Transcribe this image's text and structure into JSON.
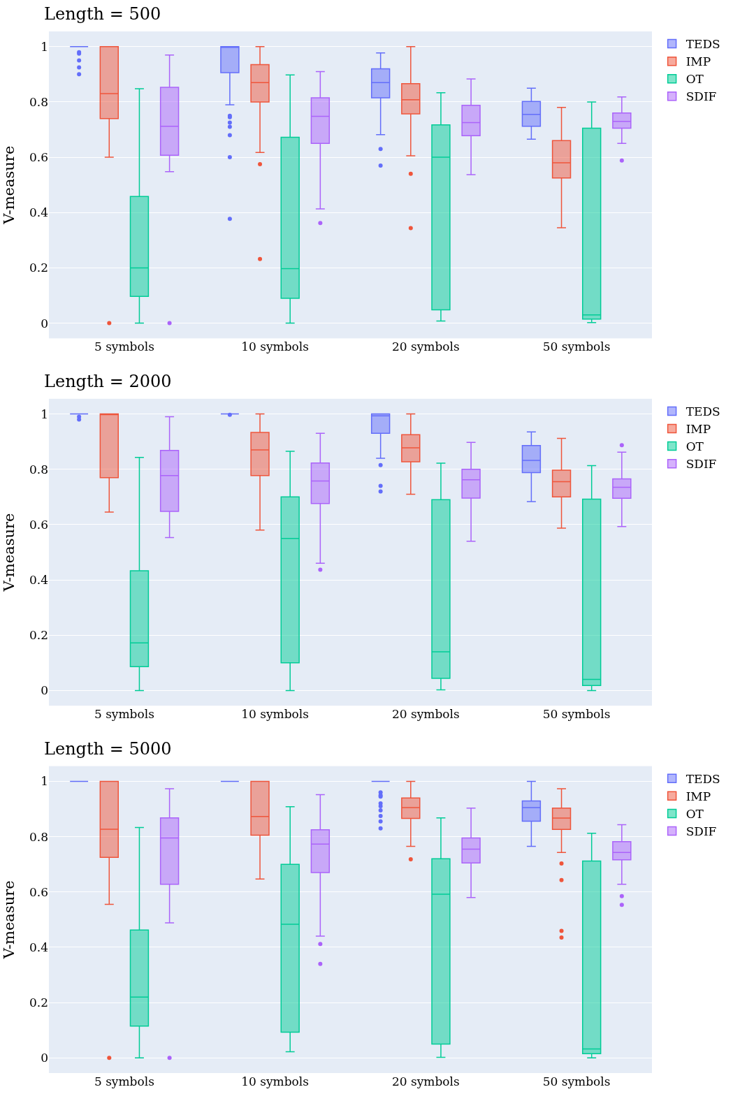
{
  "chart_data": [
    {
      "type": "box",
      "title": "Length = 500",
      "ylabel": "V-measure",
      "categories": [
        "5 symbols",
        "10 symbols",
        "20 symbols",
        "50 symbols"
      ],
      "ylim": [
        -0.055,
        1.055
      ],
      "yticks": [
        0,
        0.2,
        0.4,
        0.6,
        0.8,
        1
      ],
      "grid": "y",
      "legend": "top right",
      "series": [
        {
          "name": "TEDS",
          "color": "#636efa",
          "boxes": [
            {
              "low": 1,
              "q1": 1,
              "median": 1,
              "q3": 1,
              "high": 1,
              "outliers": [
                0.98,
                0.975,
                0.95,
                0.925,
                0.9
              ]
            },
            {
              "low": 0.79,
              "q1": 0.906,
              "median": 1,
              "q3": 1,
              "high": 1,
              "outliers": [
                0.75,
                0.745,
                0.725,
                0.71,
                0.68,
                0.6,
                0.377
              ]
            },
            {
              "low": 0.682,
              "q1": 0.815,
              "median": 0.87,
              "q3": 0.92,
              "high": 0.977,
              "outliers": [
                0.63,
                0.57
              ]
            },
            {
              "low": 0.665,
              "q1": 0.712,
              "median": 0.755,
              "q3": 0.802,
              "high": 0.85
            }
          ]
        },
        {
          "name": "IMP",
          "color": "#ef553b",
          "boxes": [
            {
              "low": 0.6,
              "q1": 0.74,
              "median": 0.83,
              "q3": 1,
              "high": 1,
              "outliers": [
                0
              ]
            },
            {
              "low": 0.617,
              "q1": 0.8,
              "median": 0.87,
              "q3": 0.935,
              "high": 1,
              "outliers": [
                0.575,
                0.232
              ]
            },
            {
              "low": 0.605,
              "q1": 0.757,
              "median": 0.808,
              "q3": 0.866,
              "high": 1,
              "outliers": [
                0.54,
                0.344
              ]
            },
            {
              "low": 0.345,
              "q1": 0.525,
              "median": 0.58,
              "q3": 0.66,
              "high": 0.78
            }
          ]
        },
        {
          "name": "OT",
          "color": "#00cc96",
          "boxes": [
            {
              "low": 0,
              "q1": 0.097,
              "median": 0.2,
              "q3": 0.458,
              "high": 0.848
            },
            {
              "low": 0,
              "q1": 0.09,
              "median": 0.197,
              "q3": 0.672,
              "high": 0.898
            },
            {
              "low": 0.008,
              "q1": 0.048,
              "median": 0.6,
              "q3": 0.717,
              "high": 0.833
            },
            {
              "low": 0.002,
              "q1": 0.015,
              "median": 0.03,
              "q3": 0.705,
              "high": 0.8
            }
          ]
        },
        {
          "name": "SDIF",
          "color": "#ab63fa",
          "boxes": [
            {
              "low": 0.548,
              "q1": 0.607,
              "median": 0.712,
              "q3": 0.853,
              "high": 0.97,
              "outliers": [
                0
              ]
            },
            {
              "low": 0.413,
              "q1": 0.65,
              "median": 0.748,
              "q3": 0.815,
              "high": 0.91,
              "outliers": [
                0.362
              ]
            },
            {
              "low": 0.537,
              "q1": 0.678,
              "median": 0.725,
              "q3": 0.788,
              "high": 0.883
            },
            {
              "low": 0.65,
              "q1": 0.705,
              "median": 0.73,
              "q3": 0.76,
              "high": 0.818,
              "outliers": [
                0.588
              ]
            }
          ]
        }
      ]
    },
    {
      "type": "box",
      "title": "Length = 2000",
      "ylabel": "V-measure",
      "categories": [
        "5 symbols",
        "10 symbols",
        "20 symbols",
        "50 symbols"
      ],
      "ylim": [
        -0.055,
        1.055
      ],
      "yticks": [
        0,
        0.2,
        0.4,
        0.6,
        0.8,
        1
      ],
      "grid": "y",
      "legend": "top right",
      "series": [
        {
          "name": "TEDS",
          "color": "#636efa",
          "boxes": [
            {
              "low": 1,
              "q1": 1,
              "median": 1,
              "q3": 1,
              "high": 1,
              "outliers": [
                0.99,
                0.98
              ]
            },
            {
              "low": 1,
              "q1": 1,
              "median": 1,
              "q3": 1,
              "high": 1,
              "outliers": [
                0.997
              ]
            },
            {
              "low": 0.84,
              "q1": 0.93,
              "median": 0.993,
              "q3": 1,
              "high": 1,
              "outliers": [
                0.815,
                0.74,
                0.72
              ]
            },
            {
              "low": 0.683,
              "q1": 0.788,
              "median": 0.832,
              "q3": 0.886,
              "high": 0.935
            }
          ]
        },
        {
          "name": "IMP",
          "color": "#ef553b",
          "boxes": [
            {
              "low": 0.645,
              "q1": 0.77,
              "median": 1,
              "q3": 1,
              "high": 1
            },
            {
              "low": 0.58,
              "q1": 0.777,
              "median": 0.87,
              "q3": 0.933,
              "high": 1
            },
            {
              "low": 0.71,
              "q1": 0.827,
              "median": 0.878,
              "q3": 0.925,
              "high": 1
            },
            {
              "low": 0.587,
              "q1": 0.7,
              "median": 0.755,
              "q3": 0.797,
              "high": 0.912
            }
          ]
        },
        {
          "name": "OT",
          "color": "#00cc96",
          "boxes": [
            {
              "low": 0,
              "q1": 0.086,
              "median": 0.172,
              "q3": 0.433,
              "high": 0.843
            },
            {
              "low": 0,
              "q1": 0.1,
              "median": 0.55,
              "q3": 0.7,
              "high": 0.865
            },
            {
              "low": 0.002,
              "q1": 0.044,
              "median": 0.14,
              "q3": 0.69,
              "high": 0.822
            },
            {
              "low": 0,
              "q1": 0.018,
              "median": 0.04,
              "q3": 0.692,
              "high": 0.813
            }
          ]
        },
        {
          "name": "SDIF",
          "color": "#ab63fa",
          "boxes": [
            {
              "low": 0.553,
              "q1": 0.648,
              "median": 0.777,
              "q3": 0.868,
              "high": 0.99
            },
            {
              "low": 0.46,
              "q1": 0.676,
              "median": 0.758,
              "q3": 0.823,
              "high": 0.93,
              "outliers": [
                0.437
              ]
            },
            {
              "low": 0.54,
              "q1": 0.696,
              "median": 0.762,
              "q3": 0.8,
              "high": 0.897
            },
            {
              "low": 0.593,
              "q1": 0.695,
              "median": 0.735,
              "q3": 0.765,
              "high": 0.862,
              "outliers": [
                0.887
              ]
            }
          ]
        }
      ]
    },
    {
      "type": "box",
      "title": "Length = 5000",
      "ylabel": "V-measure",
      "categories": [
        "5 symbols",
        "10 symbols",
        "20 symbols",
        "50 symbols"
      ],
      "ylim": [
        -0.055,
        1.055
      ],
      "yticks": [
        0,
        0.2,
        0.4,
        0.6,
        0.8,
        1
      ],
      "grid": "y",
      "legend": "top right",
      "series": [
        {
          "name": "TEDS",
          "color": "#636efa",
          "boxes": [
            {
              "low": 1,
              "q1": 1,
              "median": 1,
              "q3": 1,
              "high": 1
            },
            {
              "low": 1,
              "q1": 1,
              "median": 1,
              "q3": 1,
              "high": 1
            },
            {
              "low": 1,
              "q1": 1,
              "median": 1,
              "q3": 1,
              "high": 1,
              "outliers": [
                0.96,
                0.95,
                0.945,
                0.92,
                0.91,
                0.895,
                0.875,
                0.855,
                0.83
              ]
            },
            {
              "low": 0.765,
              "q1": 0.856,
              "median": 0.905,
              "q3": 0.929,
              "high": 1
            }
          ]
        },
        {
          "name": "IMP",
          "color": "#ef553b",
          "boxes": [
            {
              "low": 0.555,
              "q1": 0.725,
              "median": 0.827,
              "q3": 1,
              "high": 1,
              "outliers": [
                0
              ]
            },
            {
              "low": 0.647,
              "q1": 0.805,
              "median": 0.873,
              "q3": 1,
              "high": 1
            },
            {
              "low": 0.765,
              "q1": 0.866,
              "median": 0.905,
              "q3": 0.94,
              "high": 1,
              "outliers": [
                0.718
              ]
            },
            {
              "low": 0.743,
              "q1": 0.826,
              "median": 0.867,
              "q3": 0.903,
              "high": 0.973,
              "outliers": [
                0.703,
                0.643,
                0.459,
                0.435
              ]
            }
          ]
        },
        {
          "name": "OT",
          "color": "#00cc96",
          "boxes": [
            {
              "low": 0,
              "q1": 0.115,
              "median": 0.22,
              "q3": 0.462,
              "high": 0.833
            },
            {
              "low": 0.022,
              "q1": 0.093,
              "median": 0.483,
              "q3": 0.7,
              "high": 0.908
            },
            {
              "low": 0.002,
              "q1": 0.05,
              "median": 0.592,
              "q3": 0.72,
              "high": 0.868
            },
            {
              "low": 0,
              "q1": 0.015,
              "median": 0.032,
              "q3": 0.712,
              "high": 0.812
            }
          ]
        },
        {
          "name": "SDIF",
          "color": "#ab63fa",
          "boxes": [
            {
              "low": 0.488,
              "q1": 0.628,
              "median": 0.795,
              "q3": 0.868,
              "high": 0.973,
              "outliers": [
                0
              ]
            },
            {
              "low": 0.44,
              "q1": 0.67,
              "median": 0.773,
              "q3": 0.825,
              "high": 0.952,
              "outliers": [
                0.412,
                0.34
              ]
            },
            {
              "low": 0.58,
              "q1": 0.705,
              "median": 0.755,
              "q3": 0.795,
              "high": 0.903
            },
            {
              "low": 0.628,
              "q1": 0.716,
              "median": 0.743,
              "q3": 0.782,
              "high": 0.843,
              "outliers": [
                0.585,
                0.553
              ]
            }
          ]
        }
      ]
    }
  ]
}
